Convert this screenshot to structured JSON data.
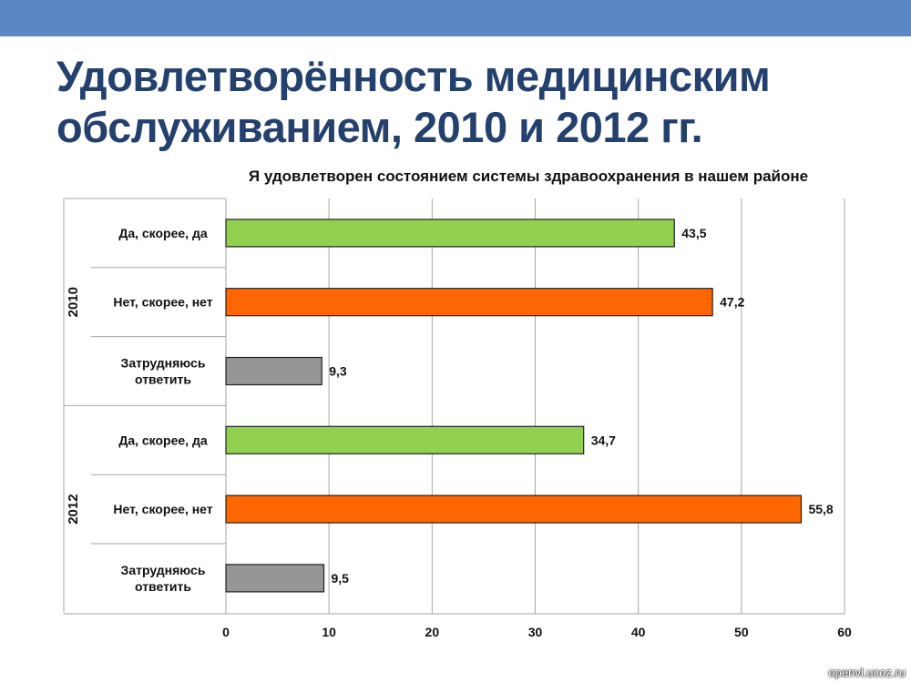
{
  "slide": {
    "title_line1": "Удовлетворённость медицинским",
    "title_line2": "обслуживанием, 2010 и 2012 гг.",
    "watermark": "openvl.ucoz.ru"
  },
  "colors": {
    "header_band": "#5b87c5",
    "title": "#24406e",
    "yes": "#92d050",
    "no": "#ff6600",
    "unsure": "#969696"
  },
  "chart_data": {
    "type": "bar",
    "orientation": "horizontal",
    "title": "Я удовлетворен состоянием системы здравоохранения в нашем районе",
    "xlim": [
      0,
      60
    ],
    "xticks": [
      0,
      10,
      20,
      30,
      40,
      50,
      60
    ],
    "grid": true,
    "legend": "none",
    "groups": [
      {
        "name": "2010",
        "bars": [
          {
            "label": [
              "Да, скорее, да"
            ],
            "value": 43.5,
            "value_label": "43,5",
            "kind": "yes"
          },
          {
            "label": [
              "Нет, скорее, нет"
            ],
            "value": 47.2,
            "value_label": "47,2",
            "kind": "no"
          },
          {
            "label": [
              "Затрудняюсь",
              "ответить"
            ],
            "value": 9.3,
            "value_label": "9,3",
            "kind": "unsure"
          }
        ]
      },
      {
        "name": "2012",
        "bars": [
          {
            "label": [
              "Да, скорее, да"
            ],
            "value": 34.7,
            "value_label": "34,7",
            "kind": "yes"
          },
          {
            "label": [
              "Нет, скорее, нет"
            ],
            "value": 55.8,
            "value_label": "55,8",
            "kind": "no"
          },
          {
            "label": [
              "Затрудняюсь",
              "ответить"
            ],
            "value": 9.5,
            "value_label": "9,5",
            "kind": "unsure"
          }
        ]
      }
    ]
  }
}
